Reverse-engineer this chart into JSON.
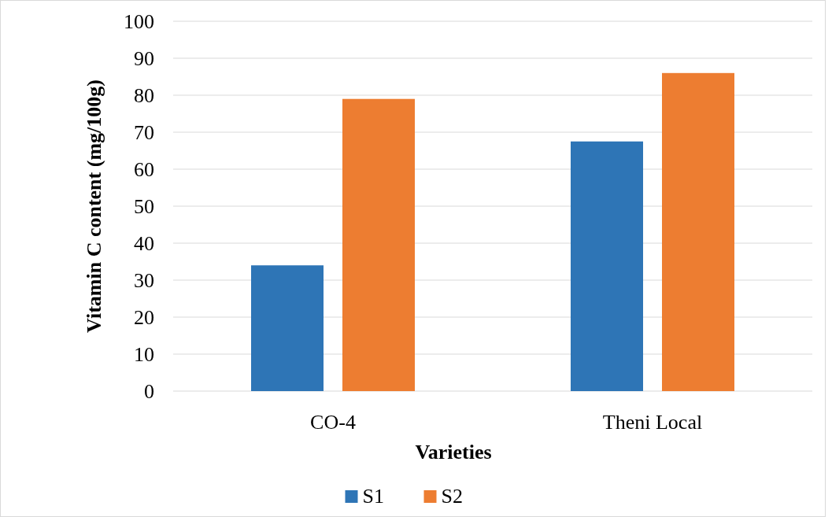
{
  "chart_data": {
    "type": "bar",
    "xlabel": "Varieties",
    "ylabel": "Vitamin C content (mg/100g)",
    "categories": [
      "CO-4",
      "Theni Local"
    ],
    "series": [
      {
        "name": "S1",
        "color": "#2e75b6",
        "values": [
          34,
          67.5
        ]
      },
      {
        "name": "S2",
        "color": "#ed7d31",
        "values": [
          79,
          86
        ]
      }
    ],
    "ylim": [
      0,
      100
    ],
    "yticks": [
      0,
      10,
      20,
      30,
      40,
      50,
      60,
      70,
      80,
      90,
      100
    ],
    "grid": "y",
    "legend": "bottom"
  }
}
